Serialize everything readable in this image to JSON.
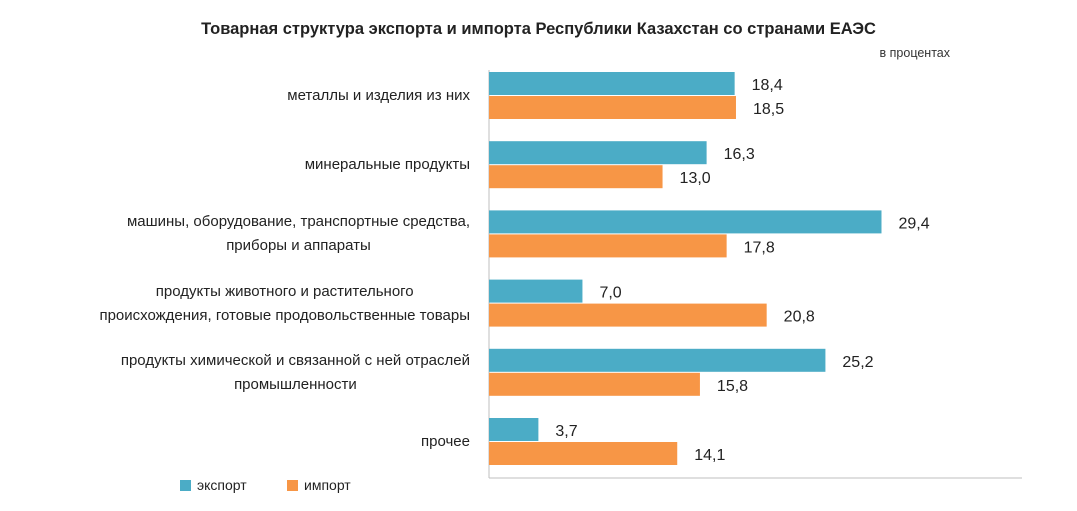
{
  "chart_data": {
    "type": "bar",
    "orientation": "horizontal",
    "title": "Товарная структура экспорта и импорта Республики Казахстан со странами ЕАЭС",
    "unit_note": "в процентах",
    "categories": [
      [
        "металлы и изделия из них"
      ],
      [
        "минеральные продукты"
      ],
      [
        "машины, оборудование, транспортные средства,",
        "приборы и аппараты"
      ],
      [
        "продукты животного и растительного",
        "происхождения, готовые продовольственные товары"
      ],
      [
        "продукты химической и связанной с ней отраслей",
        "промышленности"
      ],
      [
        "прочее"
      ]
    ],
    "series": [
      {
        "name": "экспорт",
        "color": "#4bacc6",
        "values": [
          18.4,
          16.3,
          29.4,
          7.0,
          25.2,
          3.7
        ],
        "labels": [
          "18,4",
          "16,3",
          "29,4",
          "7,0",
          "25,2",
          "3,7"
        ]
      },
      {
        "name": "импорт",
        "color": "#f79646",
        "values": [
          18.5,
          13.0,
          17.8,
          20.8,
          15.8,
          14.1
        ],
        "labels": [
          "18,5",
          "13,0",
          "17,8",
          "20,8",
          "15,8",
          "14,1"
        ]
      }
    ],
    "xlim": [
      0,
      40
    ],
    "grid": false,
    "legend_position": "bottom-left"
  }
}
